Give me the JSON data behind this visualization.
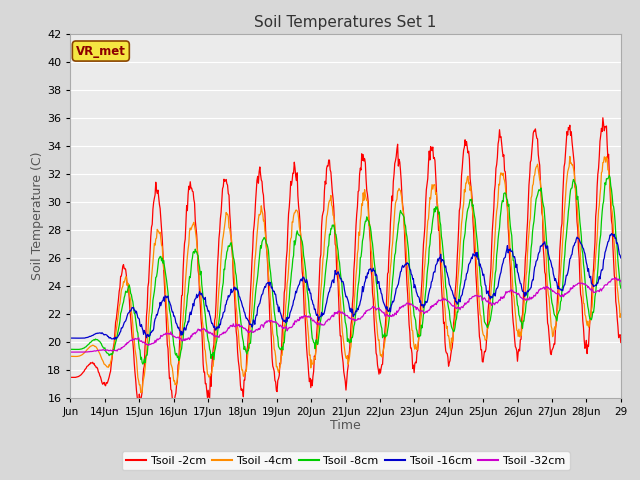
{
  "title": "Soil Temperatures Set 1",
  "xlabel": "Time",
  "ylabel": "Soil Temperature (C)",
  "ylim": [
    16,
    42
  ],
  "yticks": [
    16,
    18,
    20,
    22,
    24,
    26,
    28,
    30,
    32,
    34,
    36,
    38,
    40,
    42
  ],
  "fig_bg": "#d8d8d8",
  "plot_bg": "#ebebeb",
  "grid_color": "#ffffff",
  "series": [
    {
      "label": "Tsoil -2cm",
      "color": "#ff0000"
    },
    {
      "label": "Tsoil -4cm",
      "color": "#ff8c00"
    },
    {
      "label": "Tsoil -8cm",
      "color": "#00cc00"
    },
    {
      "label": "Tsoil -16cm",
      "color": "#0000cc"
    },
    {
      "label": "Tsoil -32cm",
      "color": "#cc00cc"
    }
  ],
  "watermark": "VR_met",
  "xtick_labels": [
    "Jun",
    "14Jun",
    "15Jun",
    "16Jun",
    "17Jun",
    "18Jun",
    "19Jun",
    "20Jun",
    "21Jun",
    "22Jun",
    "23Jun",
    "24Jun",
    "25Jun",
    "26Jun",
    "27Jun",
    "28Jun",
    "29"
  ],
  "start_day": 13,
  "end_day": 29
}
